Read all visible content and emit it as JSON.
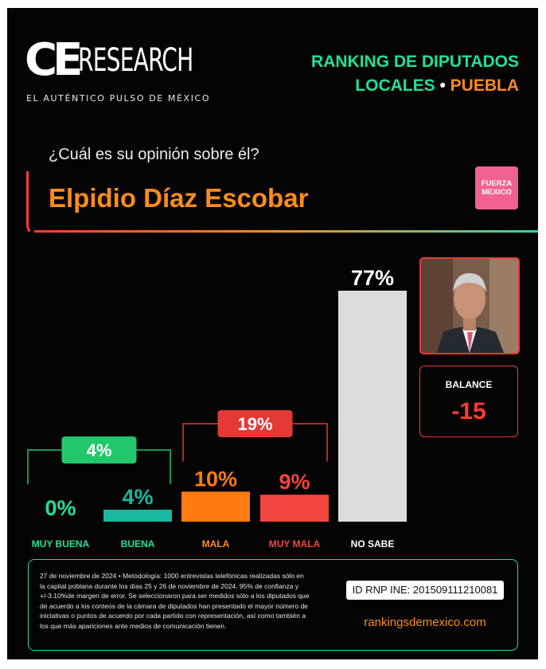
{
  "header": {
    "logo_ce": "CE",
    "logo_research": "RESEARCH",
    "tagline": "EL AUTÉNTICO PULSO DE MÉXICO",
    "ranking_line1": "RANKING DE DIPUTADOS",
    "ranking_line2_a": "LOCALES",
    "ranking_line2_dot": " • ",
    "ranking_line2_b": "PUEBLA"
  },
  "question": "¿Cuál es su opinión sobre él?",
  "candidate": {
    "name": "Elpidio Díaz Escobar",
    "party_line1": "FUERZA",
    "party_line2": "MEXICO",
    "photo_icon": "candidate-portrait"
  },
  "balance": {
    "label": "BALANCE",
    "value": "-15"
  },
  "footer": {
    "methodology": "27 de noviembre de 2024 • Metodología: 1000 entrevistas telefónicas realizadas sólo en la capital poblana durante los días 25 y 26 de noviembre de 2024. 95% de confianza y +/-3.10%de margen de error. Se seleccionaron para ser medidos sólo a los diputados que de acuerdo a los conteos de la cámara de diputados han presentado el mayor número de iniciativas o puntos de acuerdo por cada partido con representación, así como también a los que más apariciones ante medios de comunicación tienen.",
    "rnp": "ID RNP INE: 201509111210081",
    "website": "rankingsdemexico.com"
  },
  "colors": {
    "green": "#22e098",
    "teal": "#1ab8a0",
    "orange": "#ff8a1e",
    "red": "#f2453d",
    "gray": "#dcdcdc"
  },
  "chart_data": {
    "type": "bar",
    "categories": [
      "MUY BUENA",
      "BUENA",
      "MALA",
      "MUY MALA",
      "NO SABE"
    ],
    "values": [
      0,
      4,
      10,
      9,
      77
    ],
    "value_labels": [
      "0%",
      "4%",
      "10%",
      "9%",
      "77%"
    ],
    "bar_colors": [
      "#22e098",
      "#1ab8a0",
      "#ff7a10",
      "#f2453d",
      "#dcdcdc"
    ],
    "label_colors": [
      "#22e098",
      "#1ab8a0",
      "#ff7a10",
      "#f2453d",
      "#ffffff"
    ],
    "category_label_colors": [
      "#22e098",
      "#22e098",
      "#ff8a1e",
      "#f2453d",
      "#ffffff"
    ],
    "ylim": [
      0,
      77
    ],
    "groups": [
      {
        "label": "4%",
        "from": 0,
        "to": 1,
        "color": "#22c76b"
      },
      {
        "label": "19%",
        "from": 2,
        "to": 3,
        "color": "#e53935"
      }
    ]
  }
}
